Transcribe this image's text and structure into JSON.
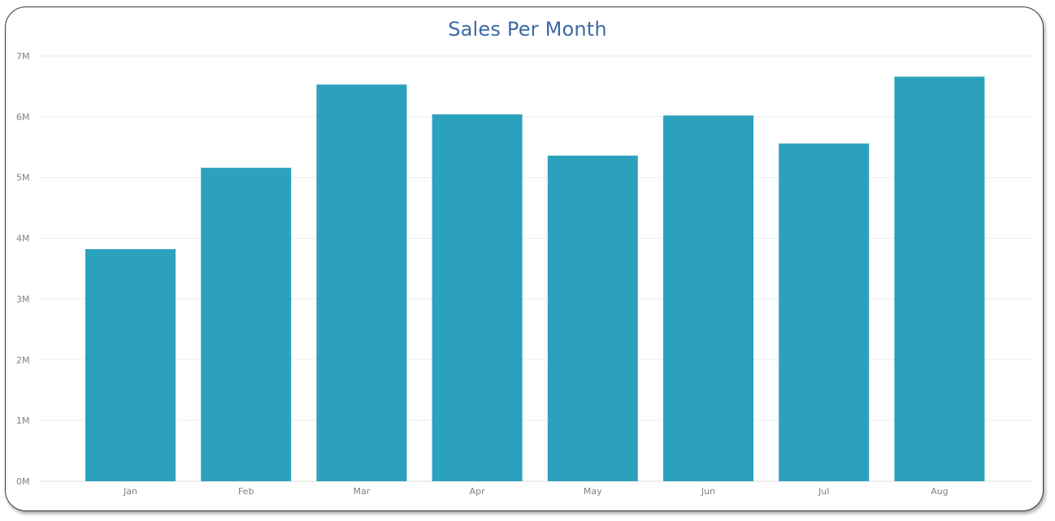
{
  "chart_data": {
    "type": "bar",
    "title": "Sales Per Month",
    "xlabel": "",
    "ylabel": "",
    "categories": [
      "Jan",
      "Feb",
      "Mar",
      "Apr",
      "May",
      "Jun",
      "Jul",
      "Aug"
    ],
    "values": [
      3820000,
      5160000,
      6530000,
      6040000,
      5360000,
      6020000,
      5560000,
      6660000
    ],
    "ylim": [
      0,
      7000000
    ],
    "yticks": [
      0,
      1000000,
      2000000,
      3000000,
      4000000,
      5000000,
      6000000,
      7000000
    ],
    "ytick_labels": [
      "0M",
      "1M",
      "2M",
      "3M",
      "4M",
      "5M",
      "6M",
      "7M"
    ],
    "grid": true,
    "legend": "none",
    "colors": {
      "bar": "#2ca1bd",
      "title": "#3b6aa6",
      "grid": "#ececec",
      "tick_text": "#808080"
    }
  }
}
